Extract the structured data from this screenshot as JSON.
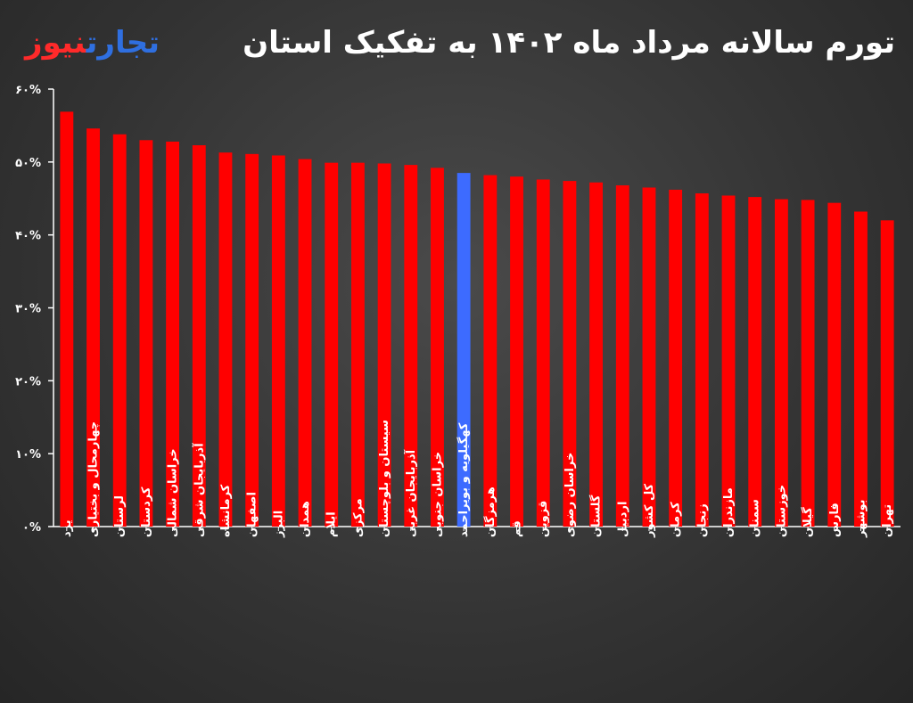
{
  "header": {
    "title": "تورم سالانه مرداد ماه ۱۴۰۲ به تفکیک استان",
    "logo_part1": "تجارت",
    "logo_part2": "نیوز"
  },
  "colors": {
    "bar": "#ff0000",
    "highlight": "#3d6bff",
    "axis": "#ffffff",
    "background": "#333333"
  },
  "chart_data": {
    "type": "bar",
    "title": "تورم سالانه مرداد ماه ۱۴۰۲ به تفکیک استان",
    "xlabel": "",
    "ylabel": "",
    "ylim": [
      0,
      60
    ],
    "grid": false,
    "ytick_values": [
      0,
      10,
      20,
      30,
      40,
      50,
      60
    ],
    "ytick_labels": [
      "۰%",
      "۱۰%",
      "۲۰%",
      "۳۰%",
      "۴۰%",
      "۵۰%",
      "۶۰%"
    ],
    "categories": [
      "یزد",
      "چهارمحال و بختیاری",
      "لرستان",
      "کردستان",
      "خراسان شمالی",
      "آذربایجان شرقی",
      "کرمانشاه",
      "اصفهان",
      "البرز",
      "همدان",
      "ایلام",
      "مرکزی",
      "سیستان و بلوچستان",
      "آذربایجان غربی",
      "خراسان جنوبی",
      "کهگیلویه و بویراحمد",
      "هرمزگان",
      "قم",
      "قزوین",
      "خراسان رضوی",
      "گلستان",
      "اردبیل",
      "کل کشور",
      "کرمان",
      "زنجان",
      "مازندران",
      "سمنان",
      "خوزستان",
      "گیلان",
      "فارس",
      "بوشهر",
      "تهران"
    ],
    "values": [
      56.9,
      54.6,
      53.8,
      53.0,
      52.8,
      52.3,
      51.3,
      51.1,
      50.9,
      50.4,
      49.9,
      49.9,
      49.8,
      49.6,
      49.2,
      48.5,
      48.2,
      48.0,
      47.6,
      47.4,
      47.2,
      46.8,
      46.5,
      46.2,
      45.7,
      45.4,
      45.2,
      44.9,
      44.8,
      44.4,
      43.2,
      42.0
    ],
    "highlight_index": 15
  }
}
